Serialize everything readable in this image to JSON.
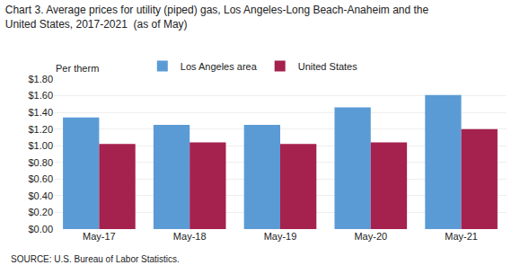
{
  "chart_data": {
    "type": "bar",
    "title": "Chart 3. Average prices for utility (piped) gas, Los Angeles-Long Beach-Anaheim and the",
    "subtitle": "United States, 2017-2021  (as of May)",
    "ylabel": "Per therm",
    "annotations": [
      "SOURCE: U.S. Bureau of Labor Statistics."
    ],
    "categories": [
      "May-17",
      "May-18",
      "May-19",
      "May-20",
      "May-21"
    ],
    "series": [
      {
        "name": "Los Angeles area",
        "color": "#5B9BD5",
        "values": [
          1.34,
          1.25,
          1.25,
          1.46,
          1.61
        ]
      },
      {
        "name": "United States",
        "color": "#A5214E",
        "values": [
          1.02,
          1.04,
          1.02,
          1.04,
          1.2
        ]
      }
    ],
    "ylim": [
      0,
      1.8
    ],
    "yticks": [
      {
        "value": 0.0,
        "label": "$0.00"
      },
      {
        "value": 0.2,
        "label": "$0.20"
      },
      {
        "value": 0.4,
        "label": "$0.40"
      },
      {
        "value": 0.6,
        "label": "$0.60"
      },
      {
        "value": 0.8,
        "label": "$0.80"
      },
      {
        "value": 1.0,
        "label": "$1.00"
      },
      {
        "value": 1.2,
        "label": "$1.20"
      },
      {
        "value": 1.4,
        "label": "$1.40"
      },
      {
        "value": 1.6,
        "label": "$1.60"
      },
      {
        "value": 1.8,
        "label": "$1.80"
      }
    ],
    "grid": true,
    "legend": "upper left"
  }
}
